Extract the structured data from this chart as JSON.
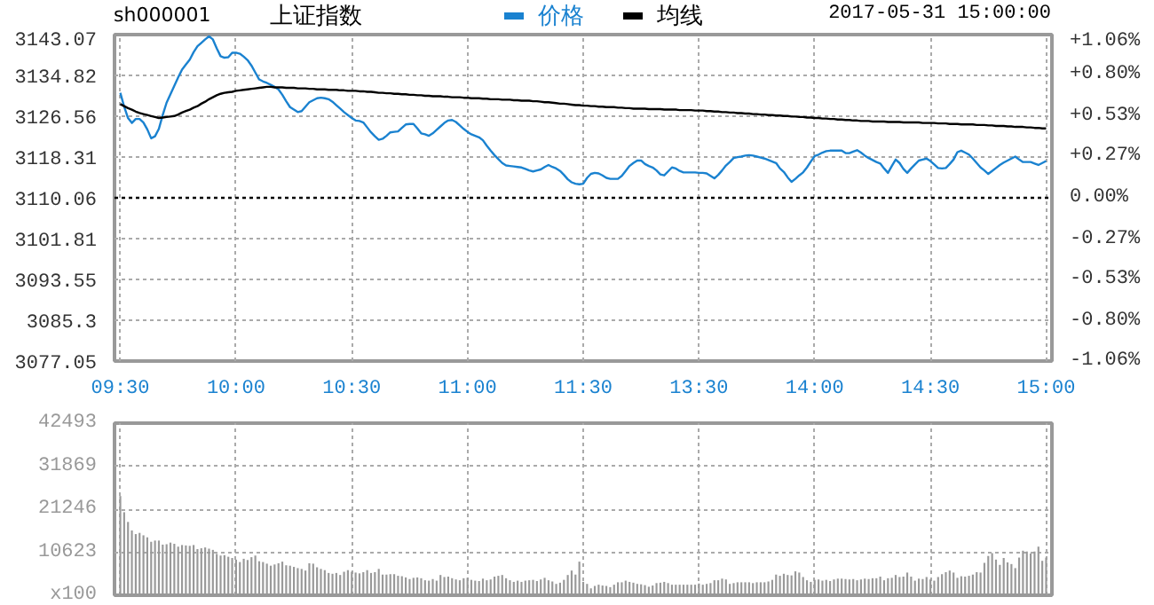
{
  "chart_data": [
    {
      "type": "line",
      "title": "上证指数",
      "annotations": [
        "sh000001",
        "2017-05-31 15:00:00"
      ],
      "categories": [
        "09:30",
        null,
        null,
        null,
        null,
        null,
        null,
        null,
        null,
        null,
        null,
        null,
        null,
        null,
        null,
        null,
        null,
        null,
        null,
        null,
        null,
        null,
        null,
        null,
        null,
        null,
        null,
        null,
        null,
        null,
        "10:00",
        null,
        null,
        null,
        null,
        null,
        null,
        null,
        null,
        null,
        null,
        null,
        null,
        null,
        null,
        null,
        null,
        null,
        null,
        null,
        null,
        null,
        null,
        null,
        null,
        null,
        null,
        null,
        null,
        null,
        "10:30",
        null,
        null,
        null,
        null,
        null,
        null,
        null,
        null,
        null,
        null,
        null,
        null,
        null,
        null,
        null,
        null,
        null,
        null,
        null,
        null,
        null,
        null,
        null,
        null,
        null,
        null,
        null,
        null,
        null,
        "11:00",
        null,
        null,
        null,
        null,
        null,
        null,
        null,
        null,
        null,
        null,
        null,
        null,
        null,
        null,
        null,
        null,
        null,
        null,
        null,
        null,
        null,
        null,
        null,
        null,
        null,
        null,
        null,
        null,
        null,
        "11:30",
        null,
        null,
        null,
        null,
        null,
        null,
        null,
        null,
        null,
        null,
        null,
        null,
        null,
        null,
        null,
        null,
        null,
        null,
        null,
        null,
        null,
        null,
        null,
        null,
        null,
        null,
        null,
        null,
        null,
        "13:30",
        null,
        null,
        null,
        null,
        null,
        null,
        null,
        null,
        null,
        null,
        null,
        null,
        null,
        null,
        null,
        null,
        null,
        null,
        null,
        null,
        null,
        null,
        null,
        null,
        null,
        null,
        null,
        null,
        null,
        "14:00",
        null,
        null,
        null,
        null,
        null,
        null,
        null,
        null,
        null,
        null,
        null,
        null,
        null,
        null,
        null,
        null,
        null,
        null,
        null,
        null,
        null,
        null,
        null,
        null,
        null,
        null,
        null,
        null,
        null,
        "14:30",
        null,
        null,
        null,
        null,
        null,
        null,
        null,
        null,
        null,
        null,
        null,
        null,
        null,
        null,
        null,
        null,
        null,
        null,
        null,
        null,
        null,
        null,
        null,
        null,
        null,
        null,
        null,
        null,
        null,
        "15:00"
      ],
      "ylim": [
        3077.05,
        3143.07
      ],
      "yticks": [
        3077.05,
        3085.3,
        3093.55,
        3101.81,
        3110.06,
        3118.31,
        3126.56,
        3134.82,
        3143.07
      ],
      "y2lim": [
        -1.06,
        1.06
      ],
      "y2ticks": [
        {
          "value": -1.06,
          "label": "-1.06%"
        },
        {
          "value": -0.8,
          "label": "-0.80%"
        },
        {
          "value": -0.53,
          "label": "-0.53%"
        },
        {
          "value": -0.27,
          "label": "-0.27%"
        },
        {
          "value": 0,
          "label": "0.00%"
        },
        {
          "value": 0.27,
          "label": "+0.27%"
        },
        {
          "value": 0.53,
          "label": "+0.53%"
        },
        {
          "value": 0.8,
          "label": "+0.80%"
        },
        {
          "value": 1.06,
          "label": "+1.06%"
        }
      ],
      "series": [
        {
          "name": "价格",
          "color": "#1a82d0",
          "values": [
            3131.3,
            3128.5,
            3126.2,
            3125.2,
            3126.0,
            3126.0,
            3125.3,
            3123.9,
            3122.1,
            3122.5,
            3124.0,
            3126.8,
            3129.3,
            3131.0,
            3132.7,
            3134.4,
            3136.0,
            3137.0,
            3138.0,
            3139.5,
            3140.7,
            3141.4,
            3142.1,
            3142.7,
            3142.1,
            3140.3,
            3138.7,
            3138.4,
            3138.5,
            3139.4,
            3139.4,
            3139.2,
            3138.6,
            3137.9,
            3136.8,
            3135.4,
            3134.0,
            3133.6,
            3133.3,
            3132.9,
            3132.5,
            3132.0,
            3130.9,
            3129.6,
            3128.4,
            3127.9,
            3127.4,
            3127.6,
            3128.5,
            3129.4,
            3129.8,
            3130.2,
            3130.3,
            3130.2,
            3130.0,
            3129.5,
            3128.8,
            3128.1,
            3127.4,
            3126.8,
            3126.2,
            3125.7,
            3125.6,
            3125.3,
            3124.3,
            3123.3,
            3122.5,
            3121.8,
            3122.0,
            3122.6,
            3123.3,
            3123.4,
            3123.5,
            3124.2,
            3124.9,
            3125.0,
            3125.0,
            3124.1,
            3123.1,
            3122.9,
            3122.6,
            3123.1,
            3123.8,
            3124.5,
            3125.2,
            3125.7,
            3125.8,
            3125.4,
            3124.7,
            3124.0,
            3123.4,
            3122.9,
            3122.6,
            3122.3,
            3121.7,
            3120.6,
            3119.6,
            3118.7,
            3117.9,
            3117.1,
            3116.6,
            3116.5,
            3116.4,
            3116.3,
            3116.2,
            3115.9,
            3115.6,
            3115.4,
            3115.6,
            3115.8,
            3116.3,
            3116.7,
            3116.3,
            3116.0,
            3115.5,
            3114.7,
            3113.8,
            3113.2,
            3112.9,
            3112.8,
            3112.9,
            3114.1,
            3114.9,
            3115.1,
            3115.0,
            3114.6,
            3114.1,
            3113.9,
            3113.9,
            3113.9,
            3114.5,
            3115.5,
            3116.5,
            3117.1,
            3117.6,
            3117.6,
            3116.9,
            3116.5,
            3116.2,
            3115.6,
            3114.8,
            3114.6,
            3115.4,
            3116.2,
            3116.0,
            3115.5,
            3115.2,
            3115.2,
            3115.2,
            3115.2,
            3115.1,
            3115.1,
            3115.0,
            3114.5,
            3114.0,
            3114.7,
            3115.6,
            3116.6,
            3117.3,
            3118.1,
            3118.3,
            3118.4,
            3118.6,
            3118.7,
            3118.6,
            3118.4,
            3118.2,
            3118.0,
            3117.7,
            3117.4,
            3117.1,
            3116.0,
            3115.3,
            3114.2,
            3113.3,
            3113.9,
            3114.6,
            3115.2,
            3116.2,
            3117.4,
            3118.5,
            3118.8,
            3119.2,
            3119.5,
            3119.6,
            3119.6,
            3119.6,
            3119.6,
            3119.1,
            3119.1,
            3119.4,
            3119.7,
            3119.2,
            3118.6,
            3118.1,
            3117.7,
            3117.3,
            3117.0,
            3116.0,
            3115.1,
            3116.5,
            3117.8,
            3117.1,
            3115.9,
            3115.1,
            3116.0,
            3116.8,
            3117.6,
            3117.8,
            3118.0,
            3117.5,
            3116.8,
            3116.1,
            3116.0,
            3116.1,
            3116.9,
            3117.8,
            3119.3,
            3119.6,
            3119.2,
            3118.8,
            3118.0,
            3117.1,
            3116.2,
            3115.6,
            3114.9,
            3115.5,
            3116.1,
            3116.7,
            3117.2,
            3117.6,
            3118.0,
            3118.4,
            3117.8,
            3117.3,
            3117.3,
            3117.3,
            3117.0,
            3116.7,
            3117.1,
            3117.5
          ]
        },
        {
          "name": "均线",
          "color": "#000000",
          "values": [
            3129.0,
            3128.6,
            3128.2,
            3127.9,
            3127.5,
            3127.2,
            3127.0,
            3126.8,
            3126.6,
            3126.4,
            3126.2,
            3126.3,
            3126.4,
            3126.5,
            3126.6,
            3126.9,
            3127.3,
            3127.6,
            3127.9,
            3128.3,
            3128.6,
            3129.1,
            3129.5,
            3130.0,
            3130.4,
            3130.8,
            3131.1,
            3131.3,
            3131.4,
            3131.5,
            3131.7,
            3131.8,
            3131.9,
            3132.0,
            3132.1,
            3132.2,
            3132.3,
            3132.4,
            3132.5,
            3132.5,
            3132.4,
            3132.4,
            3132.4,
            3132.3,
            3132.3,
            3132.3,
            3132.2,
            3132.2,
            3132.2,
            3132.1,
            3132.1,
            3132.0,
            3132.0,
            3132.0,
            3131.9,
            3131.9,
            3131.9,
            3131.8,
            3131.8,
            3131.7,
            3131.7,
            3131.7,
            3131.6,
            3131.6,
            3131.5,
            3131.5,
            3131.4,
            3131.3,
            3131.3,
            3131.2,
            3131.2,
            3131.1,
            3131.1,
            3131.0,
            3131.0,
            3130.9,
            3130.9,
            3130.8,
            3130.8,
            3130.7,
            3130.7,
            3130.6,
            3130.6,
            3130.6,
            3130.5,
            3130.5,
            3130.4,
            3130.4,
            3130.4,
            3130.3,
            3130.3,
            3130.2,
            3130.2,
            3130.2,
            3130.1,
            3130.1,
            3130.0,
            3130.0,
            3130.0,
            3129.9,
            3129.9,
            3129.9,
            3129.8,
            3129.8,
            3129.7,
            3129.7,
            3129.7,
            3129.6,
            3129.6,
            3129.5,
            3129.4,
            3129.4,
            3129.3,
            3129.2,
            3129.1,
            3129.1,
            3129.0,
            3128.9,
            3128.8,
            3128.8,
            3128.7,
            3128.7,
            3128.6,
            3128.6,
            3128.5,
            3128.5,
            3128.4,
            3128.4,
            3128.4,
            3128.3,
            3128.3,
            3128.2,
            3128.2,
            3128.1,
            3128.1,
            3128.1,
            3128.1,
            3128.0,
            3128.0,
            3128.0,
            3128.0,
            3127.9,
            3127.9,
            3127.9,
            3127.9,
            3127.8,
            3127.8,
            3127.8,
            3127.8,
            3127.7,
            3127.7,
            3127.7,
            3127.6,
            3127.6,
            3127.5,
            3127.5,
            3127.4,
            3127.4,
            3127.3,
            3127.3,
            3127.2,
            3127.2,
            3127.1,
            3127.1,
            3127.0,
            3127.0,
            3126.9,
            3126.9,
            3126.8,
            3126.8,
            3126.7,
            3126.7,
            3126.6,
            3126.6,
            3126.5,
            3126.5,
            3126.4,
            3126.4,
            3126.3,
            3126.3,
            3126.2,
            3126.2,
            3126.1,
            3126.1,
            3126.0,
            3126.0,
            3125.9,
            3125.9,
            3125.8,
            3125.8,
            3125.7,
            3125.7,
            3125.6,
            3125.6,
            3125.6,
            3125.5,
            3125.5,
            3125.5,
            3125.5,
            3125.4,
            3125.4,
            3125.4,
            3125.4,
            3125.3,
            3125.3,
            3125.3,
            3125.3,
            3125.3,
            3125.2,
            3125.2,
            3125.2,
            3125.2,
            3125.1,
            3125.1,
            3125.1,
            3125.0,
            3125.0,
            3125.0,
            3124.9,
            3124.9,
            3124.9,
            3124.9,
            3124.8,
            3124.8,
            3124.8,
            3124.7,
            3124.7,
            3124.6,
            3124.6,
            3124.6,
            3124.5,
            3124.5,
            3124.4,
            3124.4,
            3124.4,
            3124.3,
            3124.3,
            3124.2,
            3124.2,
            3124.1,
            3124.1
          ]
        }
      ],
      "ref_lines": [
        {
          "axis": "y",
          "value": 3110.06,
          "color": "#000000",
          "line_style": "dotted"
        }
      ],
      "grid": true,
      "legend": "top"
    },
    {
      "type": "bar",
      "color": "#999999",
      "grid": true,
      "ylim": [
        0,
        42493
      ],
      "yticks": [
        {
          "value": 0,
          "label": "x100"
        },
        10623,
        21246,
        31869,
        42493
      ],
      "categories": [
        null,
        null,
        null,
        null,
        null,
        null,
        null,
        null,
        null,
        null,
        null,
        null,
        null,
        null,
        null,
        null,
        null,
        null,
        null,
        null,
        null,
        null,
        null,
        null,
        null,
        null,
        null,
        null,
        null,
        null,
        null,
        null,
        null,
        null,
        null,
        null,
        null,
        null,
        null,
        null,
        null,
        null,
        null,
        null,
        null,
        null,
        null,
        null,
        null,
        null,
        null,
        null,
        null,
        null,
        null,
        null,
        null,
        null,
        null,
        null,
        null,
        null,
        null,
        null,
        null,
        null,
        null,
        null,
        null,
        null,
        null,
        null,
        null,
        null,
        null,
        null,
        null,
        null,
        null,
        null,
        null,
        null,
        null,
        null,
        null,
        null,
        null,
        null,
        null,
        null,
        null,
        null,
        null,
        null,
        null,
        null,
        null,
        null,
        null,
        null,
        null,
        null,
        null,
        null,
        null,
        null,
        null,
        null,
        null,
        null,
        null,
        null,
        null,
        null,
        null,
        null,
        null,
        null,
        null,
        null,
        null,
        null,
        null,
        null,
        null,
        null,
        null,
        null,
        null,
        null,
        null,
        null,
        null,
        null,
        null,
        null,
        null,
        null,
        null,
        null,
        null,
        null,
        null,
        null,
        null,
        null,
        null,
        null,
        null,
        null,
        null,
        null,
        null,
        null,
        null,
        null,
        null,
        null,
        null,
        null,
        null,
        null,
        null,
        null,
        null,
        null,
        null,
        null,
        null,
        null,
        null,
        null,
        null,
        null,
        null,
        null,
        null,
        null,
        null,
        null,
        null,
        null,
        null,
        null,
        null,
        null,
        null,
        null,
        null,
        null,
        null,
        null,
        null,
        null,
        null,
        null,
        null,
        null,
        null,
        null,
        null,
        null,
        null,
        null,
        null,
        null,
        null,
        null,
        null,
        null,
        null,
        null,
        null,
        null,
        null,
        null,
        null,
        null,
        null,
        null,
        null,
        null,
        null,
        null,
        null,
        null,
        null,
        null,
        null,
        null,
        null,
        null,
        null,
        null,
        null,
        null,
        null,
        null,
        null,
        null,
        null
      ],
      "values": [
        24500,
        20500,
        18100,
        16000,
        15100,
        15400,
        14800,
        14300,
        13200,
        13500,
        13500,
        12500,
        12600,
        13000,
        12700,
        12000,
        12400,
        12300,
        12200,
        12400,
        11400,
        11600,
        11800,
        11500,
        11200,
        10200,
        9800,
        9900,
        9500,
        9200,
        8800,
        8200,
        9000,
        8700,
        9400,
        9800,
        8400,
        8200,
        7800,
        7300,
        7600,
        7900,
        8300,
        7400,
        7300,
        7000,
        6700,
        6500,
        6100,
        7900,
        7800,
        6900,
        6500,
        6200,
        5500,
        5300,
        5500,
        5000,
        5800,
        6200,
        5800,
        5600,
        5400,
        5700,
        6200,
        5500,
        5700,
        6500,
        5100,
        5100,
        5200,
        5200,
        4800,
        4700,
        4400,
        4000,
        4300,
        4400,
        4200,
        3700,
        3600,
        4000,
        3600,
        5000,
        4500,
        4600,
        4200,
        3900,
        3700,
        4200,
        4300,
        3800,
        3600,
        3500,
        4100,
        3700,
        3900,
        4600,
        4800,
        5000,
        4200,
        3700,
        3300,
        3600,
        3300,
        3600,
        3700,
        3800,
        3500,
        3900,
        4300,
        3700,
        3400,
        2800,
        3100,
        3800,
        5000,
        6100,
        5100,
        8300,
        3300,
        2800,
        1700,
        2300,
        2600,
        2400,
        2300,
        2000,
        2600,
        3200,
        3200,
        3600,
        3300,
        3100,
        2800,
        2700,
        2500,
        2100,
        2400,
        3000,
        3100,
        3300,
        3000,
        2600,
        2600,
        2600,
        2600,
        2600,
        2600,
        2600,
        2900,
        2600,
        2800,
        3000,
        3700,
        3700,
        4100,
        3900,
        2800,
        3000,
        3200,
        3200,
        3200,
        3200,
        3000,
        3200,
        3200,
        3200,
        3400,
        3800,
        5100,
        4800,
        5300,
        5000,
        4900,
        5900,
        5600,
        4500,
        3700,
        3300,
        3800,
        3900,
        3600,
        3800,
        3500,
        3900,
        4100,
        4100,
        4000,
        3900,
        4000,
        3700,
        3900,
        4100,
        4000,
        4200,
        4200,
        4600,
        3700,
        4200,
        4300,
        5000,
        4500,
        4600,
        5600,
        4600,
        3600,
        4100,
        4000,
        4500,
        3900,
        3600,
        4500,
        5200,
        5700,
        6100,
        5600,
        4300,
        4700,
        4600,
        4800,
        5100,
        5700,
        5600,
        8000,
        9700,
        10400,
        8800,
        7500,
        9200,
        8100,
        7700,
        6700,
        9300,
        11000,
        10800,
        10300,
        10800,
        12000,
        8500,
        9300
      ]
    }
  ]
}
